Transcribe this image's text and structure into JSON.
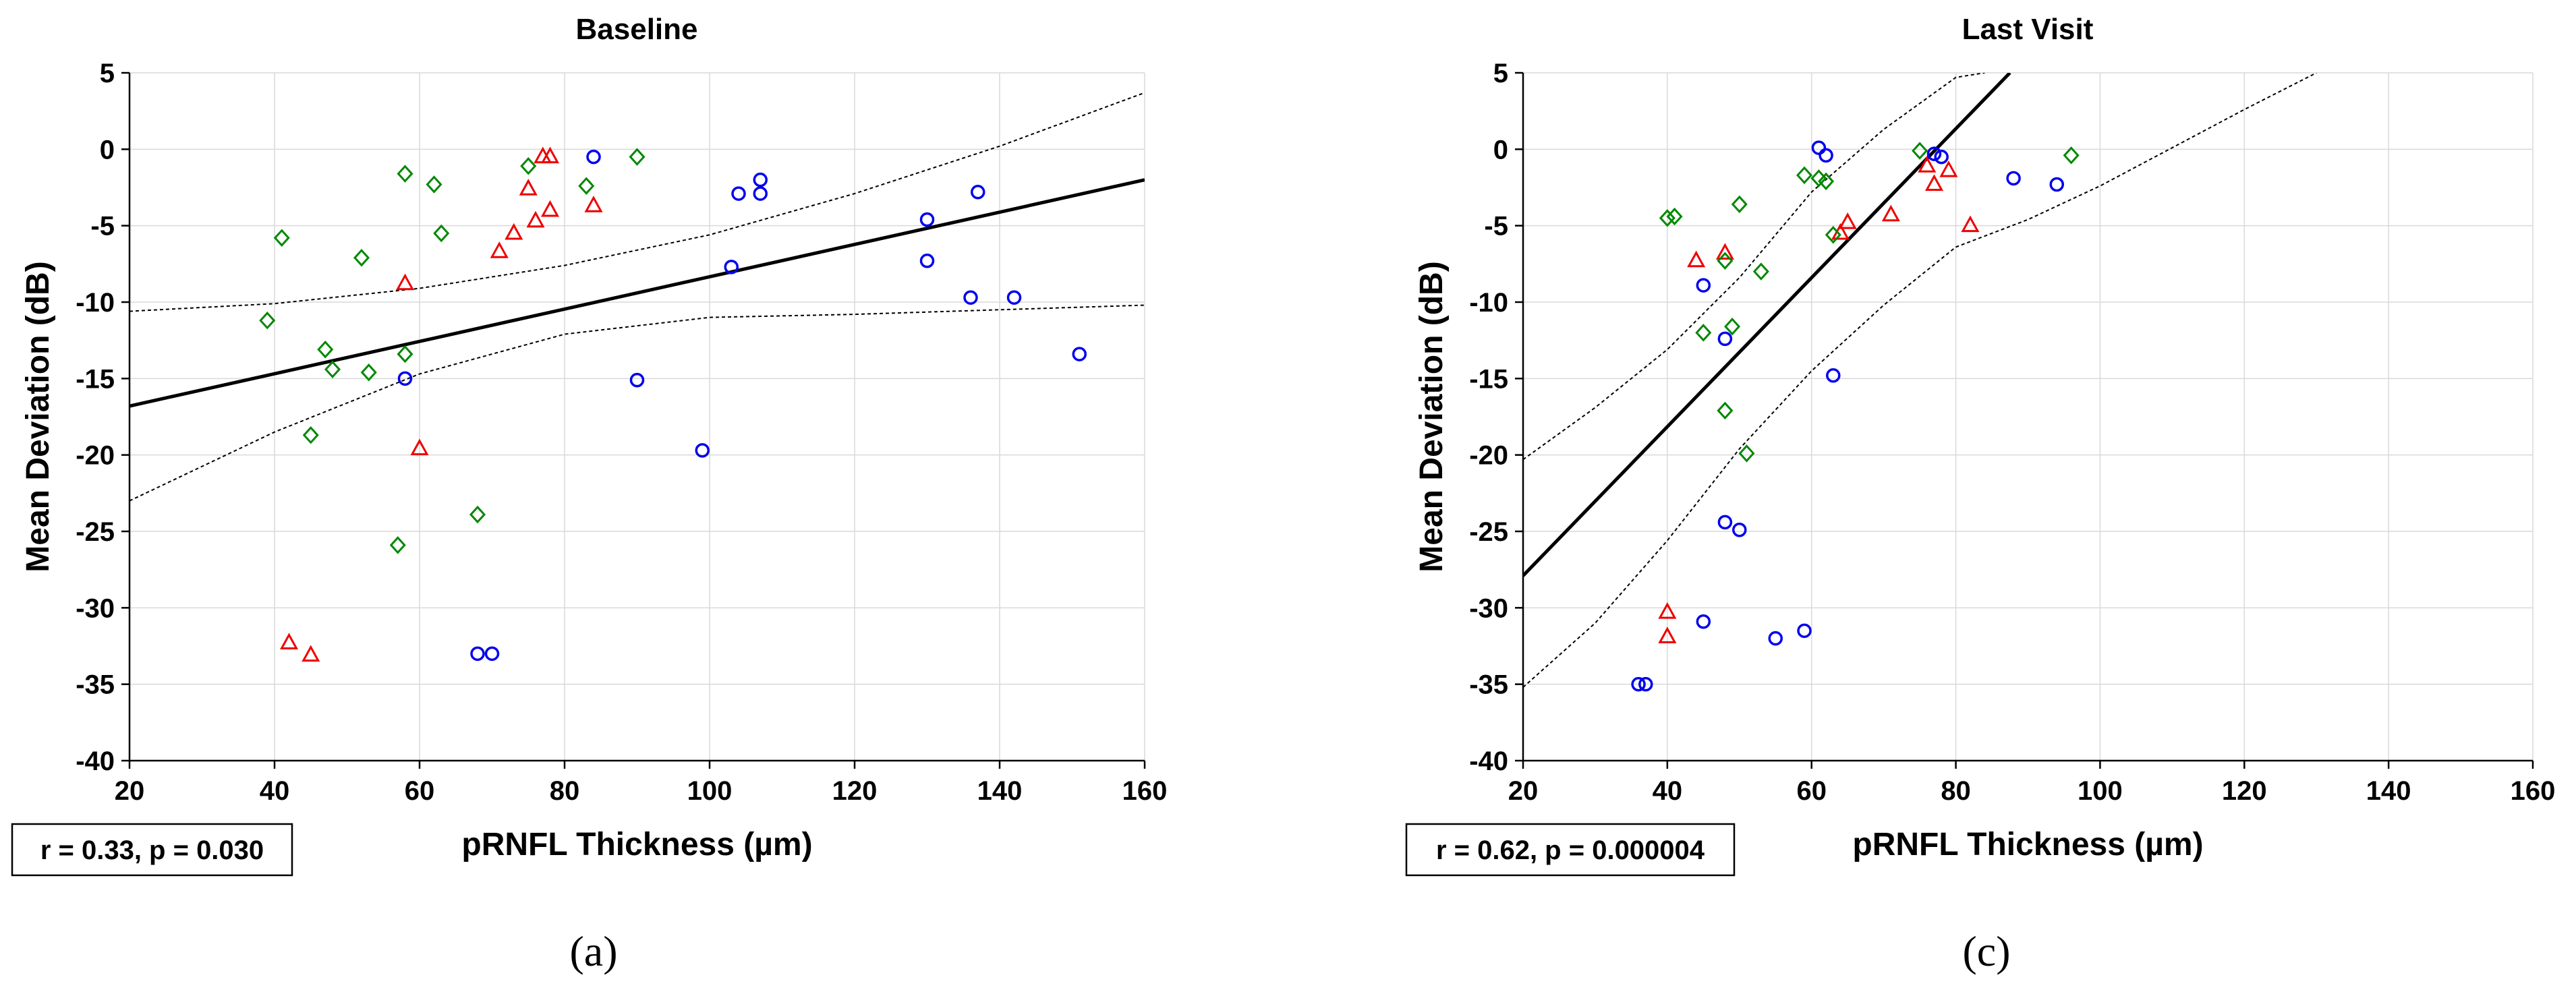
{
  "colors": {
    "blue": "#0000ee",
    "red": "#ee0000",
    "green": "#008800",
    "grid": "#d9d9d9",
    "axis": "#000000"
  },
  "chart_data": [
    {
      "type": "scatter",
      "panel": "a",
      "title": "Baseline",
      "xlabel": "pRNFL Thickness (µm)",
      "ylabel": "Mean Deviation (dB)",
      "xlim": [
        20,
        160
      ],
      "ylim": [
        -40,
        5
      ],
      "xticks": [
        20,
        40,
        60,
        80,
        100,
        120,
        140,
        160
      ],
      "yticks": [
        5,
        0,
        -5,
        -10,
        -15,
        -20,
        -25,
        -30,
        -35,
        -40
      ],
      "grid": true,
      "stats_label": "r = 0.33, p = 0.030",
      "caption": "(a)",
      "fit_line": {
        "x": [
          20,
          160
        ],
        "y": [
          -16.8,
          -2.0
        ]
      },
      "ci_upper": {
        "x": [
          20,
          40,
          60,
          80,
          100,
          120,
          140,
          160
        ],
        "y": [
          -10.6,
          -10.1,
          -9.1,
          -7.6,
          -5.6,
          -2.9,
          0.2,
          3.7
        ]
      },
      "ci_lower": {
        "x": [
          20,
          40,
          60,
          80,
          100,
          120,
          140,
          160
        ],
        "y": [
          -23.0,
          -18.5,
          -14.7,
          -12.1,
          -11.0,
          -10.8,
          -10.5,
          -10.2
        ]
      },
      "series": [
        {
          "name": "circles",
          "marker": "circle",
          "color": "#0000ee",
          "x": [
            84,
            103,
            107,
            107,
            104,
            130,
            137,
            130,
            136,
            142,
            151,
            90,
            99,
            58,
            68,
            70
          ],
          "y": [
            -0.5,
            -7.7,
            -2.0,
            -2.9,
            -2.9,
            -4.6,
            -2.8,
            -7.3,
            -9.7,
            -9.7,
            -13.4,
            -15.1,
            -19.7,
            -15.0,
            -33.0,
            -33.0
          ]
        },
        {
          "name": "triangles",
          "marker": "triangle",
          "color": "#ee0000",
          "x": [
            77,
            78,
            75,
            76,
            73,
            71,
            84,
            58,
            60,
            42,
            45,
            78
          ],
          "y": [
            -0.5,
            -0.5,
            -2.6,
            -4.7,
            -5.5,
            -6.7,
            -3.7,
            -8.8,
            -19.6,
            -32.3,
            -33.1,
            -4.0
          ]
        },
        {
          "name": "diamonds",
          "marker": "diamond",
          "color": "#008800",
          "x": [
            90,
            75,
            83,
            58,
            62,
            63,
            41,
            52,
            39,
            47,
            48,
            53,
            58,
            45,
            57,
            68
          ],
          "y": [
            -0.5,
            -1.1,
            -2.4,
            -1.6,
            -2.3,
            -5.5,
            -5.8,
            -7.1,
            -11.2,
            -13.1,
            -14.4,
            -14.6,
            -13.4,
            -18.7,
            -25.9,
            -23.9
          ]
        }
      ]
    },
    {
      "type": "scatter",
      "panel": "c",
      "title": "Last Visit",
      "xlabel": "pRNFL Thickness (µm)",
      "ylabel": "Mean Deviation (dB)",
      "xlim": [
        20,
        160
      ],
      "ylim": [
        -40,
        5
      ],
      "xticks": [
        20,
        40,
        60,
        80,
        100,
        120,
        140,
        160
      ],
      "yticks": [
        5,
        0,
        -5,
        -10,
        -15,
        -20,
        -25,
        -30,
        -35,
        -40
      ],
      "grid": true,
      "stats_label": "r = 0.62, p = 0.000004",
      "caption": "(c)",
      "fit_line": {
        "x": [
          20,
          87.5
        ],
        "y": [
          -27.9,
          5.0
        ]
      },
      "ci_upper": {
        "x": [
          20,
          30,
          40,
          50,
          60,
          70,
          80,
          84
        ],
        "y": [
          -20.3,
          -16.9,
          -13.1,
          -8.4,
          -2.8,
          1.3,
          4.7,
          5.0
        ]
      },
      "ci_lower": {
        "x": [
          20,
          30,
          40,
          50,
          60,
          70,
          80,
          90,
          100,
          110,
          120,
          130
        ],
        "y": [
          -35.2,
          -31.0,
          -25.6,
          -19.6,
          -14.5,
          -10.2,
          -6.4,
          -4.6,
          -2.4,
          0.1,
          2.6,
          5.0
        ]
      },
      "series": [
        {
          "name": "circles",
          "marker": "circle",
          "color": "#0000ee",
          "x": [
            61,
            62,
            77,
            78,
            88,
            94,
            45,
            48,
            63,
            48,
            50,
            45,
            55,
            59,
            36,
            37
          ],
          "y": [
            0.1,
            -0.4,
            -0.3,
            -0.5,
            -1.9,
            -2.3,
            -8.9,
            -12.4,
            -14.8,
            -24.4,
            -24.9,
            -30.9,
            -32.0,
            -31.5,
            -35.0,
            -35.0
          ]
        },
        {
          "name": "triangles",
          "marker": "triangle",
          "color": "#ee0000",
          "x": [
            76,
            77,
            79,
            71,
            82,
            64,
            65,
            44,
            48,
            40,
            40
          ],
          "y": [
            -1.1,
            -2.3,
            -1.4,
            -4.3,
            -5.0,
            -5.5,
            -4.8,
            -7.3,
            -6.8,
            -30.3,
            -31.9
          ]
        },
        {
          "name": "diamonds",
          "marker": "diamond",
          "color": "#008800",
          "x": [
            75,
            96,
            59,
            61,
            62,
            63,
            40,
            41,
            50,
            53,
            48,
            45,
            49,
            48,
            51
          ],
          "y": [
            -0.1,
            -0.4,
            -1.7,
            -1.9,
            -2.1,
            -5.6,
            -4.5,
            -4.4,
            -3.6,
            -8.0,
            -7.3,
            -12.0,
            -11.6,
            -17.1,
            -19.9
          ]
        }
      ]
    }
  ]
}
